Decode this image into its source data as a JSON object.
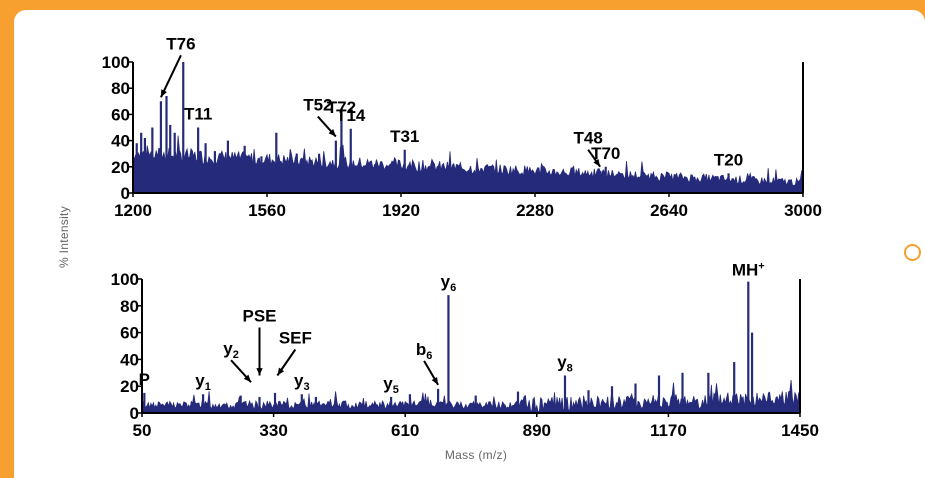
{
  "ylabel": "% Intensity",
  "xlabel": "Mass (m/z)",
  "colors": {
    "background": "#f7a030",
    "card": "#ffffff",
    "trace": "#262a7a",
    "text": "#000000"
  },
  "chart_data": [
    {
      "type": "line",
      "xlim": [
        1200,
        3000
      ],
      "ylim": [
        0,
        100
      ],
      "xticks": [
        "1200",
        "1560",
        "1920",
        "2280",
        "2640",
        "3000"
      ],
      "yticks": [
        "0",
        "20",
        "40",
        "60",
        "80",
        "100"
      ],
      "peaks": [
        {
          "x": 1210,
          "y": 38
        },
        {
          "x": 1222,
          "y": 46
        },
        {
          "x": 1232,
          "y": 42
        },
        {
          "x": 1252,
          "y": 50
        },
        {
          "x": 1275,
          "y": 70
        },
        {
          "x": 1290,
          "y": 74
        },
        {
          "x": 1300,
          "y": 52
        },
        {
          "x": 1312,
          "y": 46
        },
        {
          "x": 1335,
          "y": 100
        },
        {
          "x": 1375,
          "y": 50
        },
        {
          "x": 1395,
          "y": 38
        },
        {
          "x": 1420,
          "y": 32
        },
        {
          "x": 1455,
          "y": 40
        },
        {
          "x": 1500,
          "y": 36
        },
        {
          "x": 1545,
          "y": 28
        },
        {
          "x": 1585,
          "y": 46
        },
        {
          "x": 1640,
          "y": 30
        },
        {
          "x": 1700,
          "y": 30
        },
        {
          "x": 1745,
          "y": 40
        },
        {
          "x": 1760,
          "y": 55
        },
        {
          "x": 1785,
          "y": 49
        },
        {
          "x": 1850,
          "y": 22
        },
        {
          "x": 1930,
          "y": 33
        },
        {
          "x": 2000,
          "y": 20
        },
        {
          "x": 2100,
          "y": 16
        },
        {
          "x": 2200,
          "y": 14
        },
        {
          "x": 2400,
          "y": 14
        },
        {
          "x": 2455,
          "y": 17
        },
        {
          "x": 2470,
          "y": 20
        },
        {
          "x": 2600,
          "y": 10
        },
        {
          "x": 2800,
          "y": 15
        },
        {
          "x": 2900,
          "y": 8
        }
      ],
      "annotations": [
        {
          "label": "T76",
          "x": 1275,
          "y": 70,
          "arrow": true
        },
        {
          "label": "T11",
          "x": 1375,
          "y": 50,
          "arrow": false
        },
        {
          "label": "T52",
          "x": 1745,
          "y": 40,
          "arrow": true
        },
        {
          "label": "T72",
          "x": 1760,
          "y": 55,
          "arrow": false
        },
        {
          "label": "T14",
          "x": 1785,
          "y": 49,
          "arrow": false
        },
        {
          "label": "T31",
          "x": 1930,
          "y": 33,
          "arrow": false
        },
        {
          "label": "T48",
          "x": 2455,
          "y": 17,
          "arrow": true
        },
        {
          "label": "T70",
          "x": 2470,
          "y": 20,
          "arrow": false
        },
        {
          "label": "T20",
          "x": 2800,
          "y": 15,
          "arrow": false
        }
      ]
    },
    {
      "type": "line",
      "xlim": [
        50,
        1450
      ],
      "ylim": [
        0,
        100
      ],
      "xticks": [
        "50",
        "330",
        "610",
        "890",
        "1170",
        "1450"
      ],
      "yticks": [
        "0",
        "20",
        "40",
        "60",
        "80",
        "100"
      ],
      "peaks": [
        {
          "x": 55,
          "y": 15
        },
        {
          "x": 180,
          "y": 14
        },
        {
          "x": 260,
          "y": 13
        },
        {
          "x": 300,
          "y": 12
        },
        {
          "x": 333,
          "y": 15
        },
        {
          "x": 390,
          "y": 14
        },
        {
          "x": 420,
          "y": 12
        },
        {
          "x": 580,
          "y": 12
        },
        {
          "x": 620,
          "y": 14
        },
        {
          "x": 680,
          "y": 18
        },
        {
          "x": 702,
          "y": 88
        },
        {
          "x": 760,
          "y": 13
        },
        {
          "x": 850,
          "y": 16
        },
        {
          "x": 950,
          "y": 28
        },
        {
          "x": 1000,
          "y": 17
        },
        {
          "x": 1050,
          "y": 20
        },
        {
          "x": 1100,
          "y": 22
        },
        {
          "x": 1150,
          "y": 28
        },
        {
          "x": 1200,
          "y": 30
        },
        {
          "x": 1255,
          "y": 30
        },
        {
          "x": 1310,
          "y": 38
        },
        {
          "x": 1340,
          "y": 98
        },
        {
          "x": 1348,
          "y": 60
        }
      ],
      "annotations": [
        {
          "label": "P",
          "x": 55,
          "y": 15,
          "arrow": false
        },
        {
          "label": "y",
          "sub": "1",
          "x": 180,
          "y": 14,
          "arrow": false
        },
        {
          "label": "y",
          "sub": "2",
          "x": 282,
          "y": 20,
          "arrow": true
        },
        {
          "label": "PSE",
          "x": 300,
          "y": 25,
          "arrow": true
        },
        {
          "label": "SEF",
          "x": 338,
          "y": 25,
          "arrow": true
        },
        {
          "label": "y",
          "sub": "3",
          "x": 390,
          "y": 14,
          "arrow": false
        },
        {
          "label": "y",
          "sub": "5",
          "x": 580,
          "y": 12,
          "arrow": false
        },
        {
          "label": "b",
          "sub": "6",
          "x": 680,
          "y": 18,
          "arrow": true
        },
        {
          "label": "y",
          "sub": "6",
          "x": 702,
          "y": 88,
          "arrow": false
        },
        {
          "label": "y",
          "sub": "8",
          "x": 950,
          "y": 28,
          "arrow": false
        },
        {
          "label": "MH",
          "sup": "+",
          "x": 1340,
          "y": 98,
          "arrow": false
        }
      ]
    }
  ]
}
